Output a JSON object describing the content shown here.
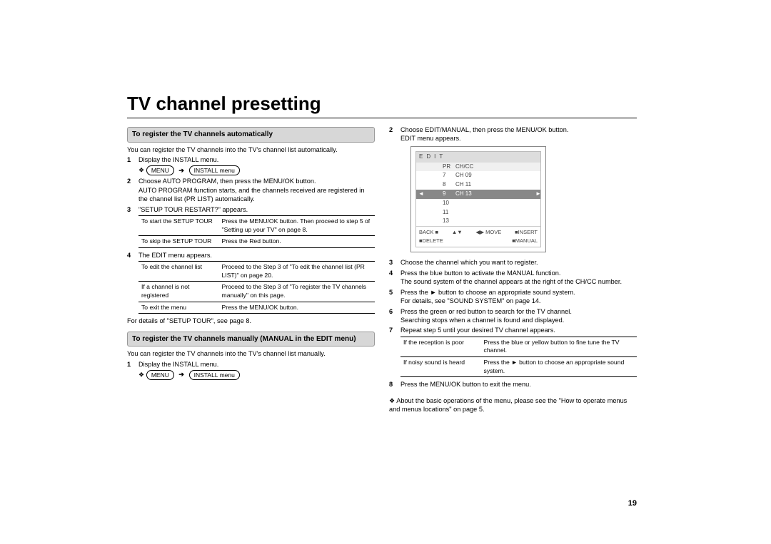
{
  "page": {
    "title": "TV channel presetting",
    "number": "19"
  },
  "left": {
    "sec1_title": "To register the TV channels automatically",
    "intro": "You can register the TV channels into the TV's channel list automatically.",
    "step1": "Display the INSTALL menu.",
    "menu_prefix": "❖",
    "menu_pill": "MENU",
    "install_pill": "INSTALL menu",
    "step2a": "Choose AUTO PROGRAM, then press the MENU/OK button.",
    "step2b": "AUTO PROGRAM function starts, and the channels received are registered in the channel list (PR LIST) automatically.",
    "step3": "\"SETUP TOUR RESTART?\" appears.",
    "t1r1c1": "To start the SETUP TOUR",
    "t1r1c2": "Press the MENU/OK button. Then proceed to step 5 of \"Setting up your TV\" on page 8.",
    "t1r2c1": "To skip the SETUP TOUR",
    "t1r2c2": "Press the Red button.",
    "step4": "The EDIT menu appears.",
    "t2r1c1": "To edit the channel list",
    "t2r1c2": "Proceed to the Step 3 of \"To edit the channel list (PR LIST)\" on page 20.",
    "t2r2c1": "If a channel is not registered",
    "t2r2c2": "Proceed to the Step 3 of \"To register the TV channels manually\" on this page.",
    "t2r3c1": "To exit the menu",
    "t2r3c2": "Press the MENU/OK button.",
    "t2_footer": "For details of \"SETUP TOUR\", see page 8.",
    "sec2_title": "To register the TV channels manually (MANUAL in the EDIT menu)",
    "sec2_intro": "You can register the TV channels into the TV's channel list manually.",
    "sec2_step1": "Display the INSTALL menu."
  },
  "right": {
    "step2a": "Choose EDIT/MANUAL, then press the MENU/OK button.",
    "step2b": "EDIT menu appears.",
    "osd": {
      "title": "EDIT",
      "col1": "PR",
      "col2": "CH/CC",
      "rows": [
        {
          "pr": "7",
          "ch": "CH 09"
        },
        {
          "pr": "8",
          "ch": "CH 11"
        },
        {
          "pr": "9",
          "ch": "CH 13",
          "sel": true
        },
        {
          "pr": "10",
          "ch": ""
        },
        {
          "pr": "11",
          "ch": ""
        },
        {
          "pr": "13",
          "ch": ""
        }
      ],
      "foot_back": "BACK ■",
      "foot_move": "◀▶ MOVE",
      "foot_ins": "■INSERT",
      "foot_del": "■DELETE",
      "foot_man": "■MANUAL",
      "foot_ud": "▲▼"
    },
    "step3": "Choose the channel which you want to register.",
    "step4a": "Press the blue button to activate the MANUAL function.",
    "step4b": "The sound system of the channel appears at the right of the CH/CC number.",
    "step5a": "Press the ► button to choose an appropriate sound system.",
    "step5b": "For details, see \"SOUND SYSTEM\" on page 14.",
    "step6a": "Press the green or red button to search for the TV channel.",
    "step6b": "Searching stops when a channel is found and displayed.",
    "step7": "Repeat step 5 until your desired TV channel appears.",
    "t3r1c1": "If the reception is poor",
    "t3r1c2": "Press the blue or yellow button to fine tune the TV channel.",
    "t3r2c1": "If noisy sound is heard",
    "t3r2c2": "Press the ► button to choose an appropriate sound system.",
    "step8": "Press the MENU/OK button to exit the menu.",
    "footnote": "❖ About the basic operations of the menu, please see the \"How to operate menus and menus locations\" on page 5."
  }
}
